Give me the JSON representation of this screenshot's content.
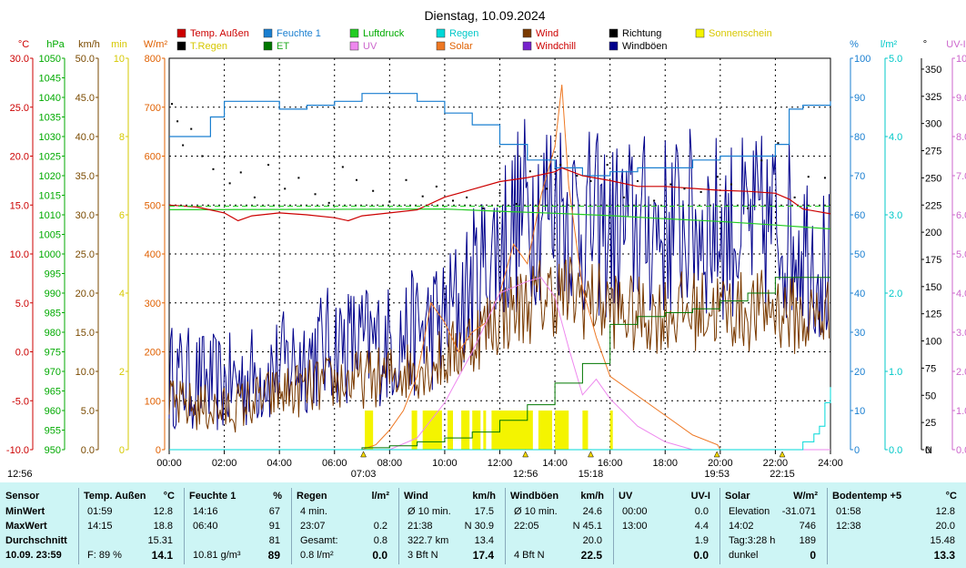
{
  "chart_data": {
    "type": "line",
    "title": "Dienstag, 10.09.2024",
    "x": {
      "ticks": [
        "00:00",
        "02:00",
        "04:00",
        "06:00",
        "08:00",
        "10:00",
        "12:00",
        "14:00",
        "16:00",
        "18:00",
        "20:00",
        "22:00",
        "24:00"
      ],
      "range_hours": [
        0,
        24
      ],
      "events": [
        {
          "label": "07:03",
          "time": 7.05
        },
        {
          "label": "12:56",
          "time": 12.93
        },
        {
          "label": "15:18",
          "time": 15.3
        },
        {
          "label": "19:53",
          "time": 19.88
        },
        {
          "label": "22:15",
          "time": 22.25
        }
      ]
    },
    "left_axes": [
      {
        "unit": "°C",
        "color": "#cc0000",
        "min": -10,
        "max": 30,
        "ticks": [
          "30.0",
          "25.0",
          "20.0",
          "15.0",
          "10.0",
          "5.0",
          "0.0",
          "-5.0",
          "-10.0"
        ]
      },
      {
        "unit": "hPa",
        "color": "#00aa00",
        "min": 950,
        "max": 1050,
        "ticks": [
          "1050",
          "1045",
          "1040",
          "1035",
          "1030",
          "1025",
          "1020",
          "1015",
          "1010",
          "1005",
          "1000",
          "995",
          "990",
          "985",
          "980",
          "975",
          "970",
          "965",
          "960",
          "955",
          "950"
        ]
      },
      {
        "unit": "km/h",
        "color": "#7a4a00",
        "min": 0,
        "max": 50,
        "ticks": [
          "50.0",
          "45.0",
          "40.0",
          "35.0",
          "30.0",
          "25.0",
          "20.0",
          "15.0",
          "10.0",
          "5.0",
          "0.0"
        ]
      },
      {
        "unit": "min",
        "color": "#d6c800",
        "min": 0,
        "max": 10,
        "ticks": [
          "10",
          "8",
          "6",
          "4",
          "2",
          "0"
        ]
      },
      {
        "unit": "W/m²",
        "color": "#e06000",
        "min": 0,
        "max": 800,
        "ticks": [
          "800",
          "700",
          "600",
          "500",
          "400",
          "300",
          "200",
          "100",
          "0"
        ]
      }
    ],
    "right_axes": [
      {
        "unit": "%",
        "color": "#1a7fd0",
        "min": 0,
        "max": 100,
        "ticks": [
          "100",
          "90",
          "80",
          "70",
          "60",
          "50",
          "40",
          "30",
          "20",
          "10",
          "0"
        ]
      },
      {
        "unit": "l/m²",
        "color": "#00c8c8",
        "min": 0,
        "max": 5,
        "ticks": [
          "5.0",
          "4.0",
          "3.0",
          "2.0",
          "1.0",
          "0.0"
        ]
      },
      {
        "unit": "°",
        "color": "#000000",
        "min": 0,
        "max": 360,
        "ticks": [
          "350",
          "325",
          "300",
          "275",
          "250",
          "225",
          "200",
          "175",
          "150",
          "125",
          "100",
          "75",
          "50",
          "25",
          "0",
          "N"
        ]
      },
      {
        "unit": "UV-I",
        "color": "#cc66cc",
        "min": 0,
        "max": 10,
        "ticks": [
          "10.0",
          "9.0",
          "8.0",
          "7.0",
          "6.0",
          "5.0",
          "4.0",
          "3.0",
          "2.0",
          "1.0",
          "0.0"
        ]
      }
    ],
    "legend": [
      {
        "name": "Temp. Außen",
        "color": "#cc0000"
      },
      {
        "name": "Feuchte 1",
        "color": "#1a7fd0"
      },
      {
        "name": "Luftdruck",
        "color": "#22cc22"
      },
      {
        "name": "Regen",
        "color": "#00d8d8"
      },
      {
        "name": "Wind",
        "color": "#7a3a00"
      },
      {
        "name": "Richtung",
        "color": "#000000"
      },
      {
        "name": "Sonnenschein",
        "color": "#f4f400"
      },
      {
        "name": "T.Regen",
        "color": "#000000"
      },
      {
        "name": "ET",
        "color": "#007700"
      },
      {
        "name": "UV",
        "color": "#ee88ee"
      },
      {
        "name": "Solar",
        "color": "#ee7722"
      },
      {
        "name": "Windchill",
        "color": "#7722cc"
      },
      {
        "name": "Windböen",
        "color": "#00008b"
      }
    ],
    "series": [
      {
        "name": "Temp. Außen",
        "axis": "°C",
        "x": [
          0,
          1,
          2,
          2.5,
          3,
          4,
          5,
          6,
          6.5,
          7,
          8,
          9,
          10,
          11,
          12,
          13,
          14,
          14.25,
          15,
          16,
          17,
          18,
          19,
          20,
          21,
          22,
          22.5,
          23,
          24
        ],
        "values": [
          15.0,
          14.8,
          14.2,
          13.4,
          13.9,
          14.2,
          14.0,
          13.7,
          13.4,
          13.9,
          14.2,
          14.5,
          15.8,
          16.6,
          17.4,
          17.8,
          18.4,
          18.8,
          18.0,
          17.5,
          16.9,
          16.9,
          16.7,
          16.5,
          16.4,
          16.2,
          15.6,
          14.6,
          14.1
        ]
      },
      {
        "name": "Feuchte 1",
        "axis": "%",
        "x": [
          0,
          1,
          1.5,
          2,
          3,
          4,
          5,
          6,
          7,
          8,
          9,
          10,
          11,
          12,
          13,
          14,
          15,
          16,
          17,
          18,
          19,
          20,
          21,
          22,
          22.5,
          23,
          23.5,
          24
        ],
        "values": [
          80,
          80,
          85,
          89,
          89,
          87,
          88,
          89,
          91,
          91,
          89,
          86,
          83,
          78,
          74,
          72,
          70,
          71,
          72,
          72,
          74,
          75,
          75,
          78,
          87,
          88,
          88,
          89
        ]
      },
      {
        "name": "Luftdruck",
        "axis": "hPa",
        "x": [
          0,
          6,
          10,
          12,
          14,
          16,
          18,
          20,
          22,
          24
        ],
        "values": [
          1011.3,
          1011.4,
          1011.5,
          1010.9,
          1010.4,
          1009.8,
          1009.0,
          1008.3,
          1007.4,
          1006.4
        ]
      },
      {
        "name": "Regen",
        "axis": "l/m²",
        "x": [
          0,
          22.5,
          23,
          23.4,
          23.6,
          23.8,
          24
        ],
        "values": [
          0,
          0,
          0.1,
          0.2,
          0.3,
          0.6,
          0.8
        ]
      },
      {
        "name": "ET",
        "axis": "min",
        "x": [
          0,
          7,
          8,
          9,
          10,
          11,
          12,
          13,
          14,
          15,
          16,
          17,
          18,
          19,
          20,
          21,
          22,
          23,
          24
        ],
        "values": [
          0,
          0.05,
          0.1,
          0.2,
          0.3,
          0.45,
          0.75,
          1.15,
          1.7,
          2.2,
          3.2,
          3.4,
          3.5,
          3.6,
          3.8,
          4.0,
          4.4,
          4.4,
          4.4
        ]
      },
      {
        "name": "Solar",
        "axis": "W/m²",
        "x": [
          0,
          7,
          7.5,
          8,
          8.5,
          9,
          9.5,
          10,
          10.5,
          11,
          11.5,
          12,
          12.5,
          13,
          13.5,
          14,
          14.25,
          14.5,
          15,
          15.5,
          16,
          17,
          18,
          19,
          19.9,
          20,
          24
        ],
        "values": [
          0,
          0,
          10,
          40,
          80,
          150,
          300,
          260,
          200,
          240,
          260,
          320,
          420,
          380,
          520,
          620,
          746,
          540,
          330,
          230,
          150,
          110,
          70,
          30,
          10,
          0,
          0
        ]
      },
      {
        "name": "UV",
        "axis": "UV-I",
        "x": [
          0,
          8,
          9,
          10,
          11,
          12,
          13,
          13.5,
          14,
          14.5,
          15,
          15.5,
          16,
          17,
          18,
          19,
          24
        ],
        "values": [
          0,
          0,
          0.3,
          1.2,
          2.5,
          4.0,
          4.3,
          4.4,
          3.9,
          2.6,
          1.4,
          1.8,
          1.3,
          0.6,
          0.2,
          0,
          0
        ]
      },
      {
        "name": "Wind",
        "axis": "km/h",
        "x": [
          0,
          2,
          4,
          6,
          8,
          10,
          11,
          12,
          13,
          14,
          15,
          16,
          17,
          18,
          19,
          20,
          21,
          22,
          23,
          24
        ],
        "values": [
          5.8,
          5.0,
          7.2,
          8.5,
          9.5,
          11.5,
          14.2,
          17.0,
          18.7,
          20.0,
          19.5,
          18.2,
          17.0,
          17.5,
          17.8,
          18.0,
          17.5,
          18.2,
          16.5,
          17.4
        ]
      },
      {
        "name": "Windböen",
        "axis": "km/h",
        "x": [
          0,
          2,
          4,
          6,
          8,
          10,
          11,
          12,
          13,
          14,
          15,
          16,
          17,
          18,
          19,
          20,
          21,
          22,
          23,
          24
        ],
        "values": [
          9.5,
          8.2,
          10.5,
          13.5,
          13.5,
          16.5,
          21.0,
          26.5,
          31.0,
          32.0,
          29.0,
          28.0,
          28.5,
          28.5,
          29.0,
          28.5,
          28.0,
          29.0,
          27.0,
          22.5
        ]
      },
      {
        "name": "Sonnenschein",
        "axis": "min",
        "intervals": [
          [
            7.1,
            7.4
          ],
          [
            8.8,
            9.0
          ],
          [
            9.2,
            9.9
          ],
          [
            10.1,
            10.3
          ],
          [
            10.6,
            10.9
          ],
          [
            11.0,
            11.3
          ],
          [
            11.4,
            11.5
          ],
          [
            11.7,
            13.2
          ],
          [
            13.4,
            13.9
          ],
          [
            14.0,
            14.5
          ],
          [
            15.0,
            15.2
          ],
          [
            16.0,
            16.1
          ]
        ],
        "values": [
          1.0
        ]
      },
      {
        "name": "Richtung",
        "axis": "°",
        "x": [
          0.1,
          0.3,
          0.5,
          0.8,
          1.2,
          1.6,
          2.2,
          2.6,
          3.1,
          3.6,
          4.2,
          4.7,
          5.3,
          5.8,
          6.3,
          6.8,
          7.4,
          8.0,
          8.6,
          9.2,
          9.7,
          10.3,
          10.8,
          11.4,
          12.0,
          12.6,
          13.1,
          13.7,
          14.2,
          14.8,
          15.3,
          15.9,
          16.5,
          17.0,
          17.6,
          18.2,
          18.7,
          19.3,
          19.9,
          20.4,
          21.0,
          21.5,
          22.1,
          22.7,
          23.2,
          23.8
        ],
        "values": [
          318,
          302,
          280,
          295,
          270,
          258,
          245,
          255,
          232,
          262,
          240,
          250,
          235,
          227,
          260,
          248,
          238,
          228,
          248,
          233,
          242,
          229,
          232,
          222,
          236,
          226,
          256,
          240,
          262,
          252,
          247,
          262,
          232,
          247,
          229,
          244,
          240,
          237,
          251,
          244,
          222,
          266,
          282,
          232,
          251,
          250
        ]
      }
    ]
  },
  "stats": {
    "timestamp": "12:56",
    "row_labels": [
      "Sensor",
      "MinWert",
      "MaxWert",
      "Durchschnitt",
      "10.09. 23:59"
    ],
    "temp": {
      "title": "Temp. Außen",
      "unit": "°C",
      "min_time": "01:59",
      "min": "12.8",
      "max_time": "14:15",
      "max": "18.8",
      "avg": "15.31",
      "extra": "F: 89 %",
      "current": "14.1"
    },
    "humidity": {
      "title": "Feuchte 1",
      "unit": "%",
      "min_time": "14:16",
      "min": "67",
      "max_time": "06:40",
      "max": "91",
      "avg": "81",
      "extra": "10.81 g/m³",
      "current": "89"
    },
    "rain": {
      "title": "Regen",
      "unit": "l/m²",
      "min_label": "4 min.",
      "min": "",
      "max_time": "23:07",
      "max": "0.2",
      "avg_label": "Gesamt:",
      "avg": "0.8",
      "extra": "0.8 l/m²",
      "current": "0.0"
    },
    "wind": {
      "title": "Wind",
      "unit": "km/h",
      "min_label": "Ø 10 min.",
      "min": "17.5",
      "max_time": "21:38",
      "max": "N 30.9",
      "avg_label": "322.7 km",
      "avg": "13.4",
      "extra": "3 Bft N",
      "current": "17.4"
    },
    "gusts": {
      "title": "Windböen",
      "unit": "km/h",
      "min_label": "Ø 10 min.",
      "min": "24.6",
      "max_time": "22:05",
      "max": "N 45.1",
      "avg": "20.0",
      "extra": "4 Bft N",
      "current": "22.5"
    },
    "uv": {
      "title": "UV",
      "unit": "UV-I",
      "min_time": "00:00",
      "min": "0.0",
      "max_time": "13:00",
      "max": "4.4",
      "avg": "1.9",
      "current": "0.0"
    },
    "solar": {
      "title": "Solar",
      "unit": "W/m²",
      "min_label": "Elevation",
      "min": "-31.071",
      "max_time": "14:02",
      "max": "746",
      "avg_label": "Tag:3:28 h",
      "avg": "189",
      "extra": "dunkel",
      "current": "0"
    },
    "soil": {
      "title": "Bodentemp +5",
      "unit": "°C",
      "min_time": "01:58",
      "min": "12.8",
      "max_time": "12:38",
      "max": "20.0",
      "avg": "15.48",
      "current": "13.3"
    }
  }
}
